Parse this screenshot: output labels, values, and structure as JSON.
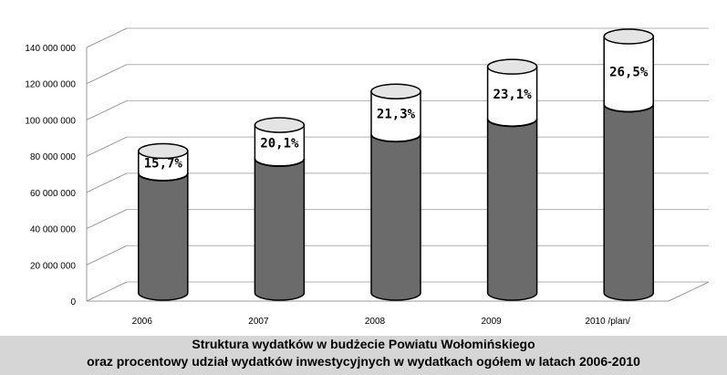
{
  "chart_data": {
    "type": "bar",
    "style": "3d-stacked-cylinder",
    "categories": [
      "2006",
      "2007",
      "2008",
      "2009",
      "2010 /plan/"
    ],
    "series": [
      {
        "values": [
          66000000,
          74000000,
          87500000,
          96000000,
          104000000
        ],
        "color": "#6b6b6b"
      },
      {
        "values": [
          12300000,
          18600000,
          23700000,
          28800000,
          37500000
        ],
        "color": "#ffffff"
      }
    ],
    "data_labels": [
      "15,7%",
      "20,1%",
      "21,3%",
      "23,1%",
      "26,5%"
    ],
    "y_ticks": [
      {
        "value": 0,
        "label": "0"
      },
      {
        "value": 20000000,
        "label": "20 000 000"
      },
      {
        "value": 40000000,
        "label": "40 000 000"
      },
      {
        "value": 60000000,
        "label": "60 000 000"
      },
      {
        "value": 80000000,
        "label": "80 000 000"
      },
      {
        "value": 100000000,
        "label": "100 000 000"
      },
      {
        "value": 120000000,
        "label": "120 000 000"
      },
      {
        "value": 140000000,
        "label": "140 000 000"
      }
    ],
    "ylim": [
      0,
      140000000
    ],
    "grid": true,
    "legend": "none",
    "title_lines": [
      "Struktura wydatków w budżecie Powiatu Wołomińskiego",
      "oraz procentowy udział wydatków inwestycyjnych w wydatkach ogółem w latach 2006-2010"
    ]
  }
}
